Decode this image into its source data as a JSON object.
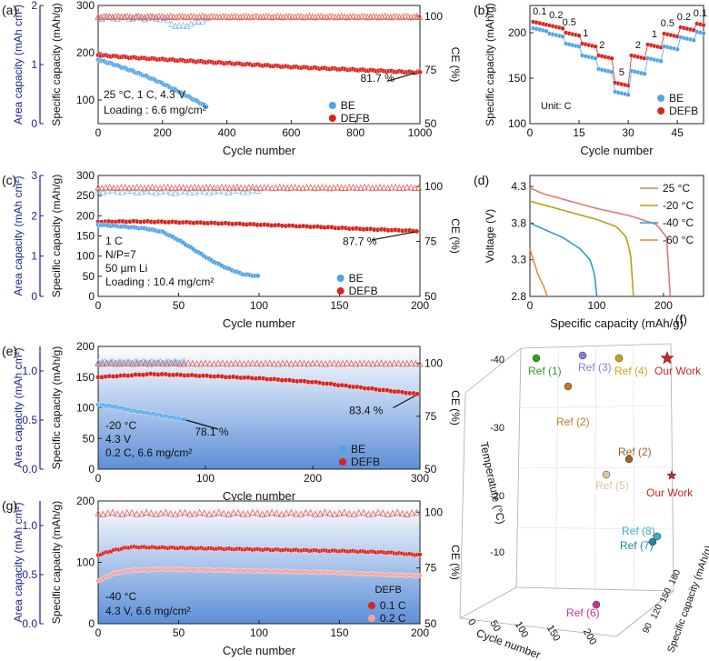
{
  "chart_data": [
    {
      "id": "a",
      "type": "scatter",
      "panel_label": "(a)",
      "xlabel": "Cycle number",
      "ylabel": "Specific capacity (mAh/g)",
      "y2label": "CE (%)",
      "y3label": "Area capacity (mAh cm²)",
      "xlim": [
        0,
        1000
      ],
      "ylim": [
        50,
        300
      ],
      "y2lim": [
        50,
        105
      ],
      "y3lim": [
        0,
        2
      ],
      "xticks": [
        0,
        200,
        400,
        600,
        800,
        1000
      ],
      "yticks": [
        100,
        200,
        300
      ],
      "y2ticks": [
        50,
        75,
        100
      ],
      "y3ticks": [
        0,
        1,
        2
      ],
      "annotations": [
        "25 °C, 1 C, 4.3 V",
        "Loading : 6.6 mg/cm²",
        "81.7 %"
      ],
      "legend": [
        "BE",
        "DEFB"
      ],
      "series": [
        {
          "name": "BE",
          "x": [
            0,
            50,
            100,
            150,
            200,
            250,
            300,
            340
          ],
          "values": [
            185,
            175,
            163,
            150,
            135,
            118,
            100,
            85
          ]
        },
        {
          "name": "DEFB",
          "x": [
            0,
            100,
            200,
            300,
            400,
            500,
            600,
            700,
            800,
            900,
            1000
          ],
          "values": [
            195,
            190,
            186,
            182,
            178,
            174,
            170,
            167,
            164,
            161,
            158
          ]
        },
        {
          "name": "BE CE",
          "x": [
            0,
            100,
            200,
            250,
            300,
            340
          ],
          "values": [
            99.5,
            99.3,
            99.2,
            95,
            97,
            99
          ]
        },
        {
          "name": "DEFB CE",
          "x": [
            0,
            500,
            1000
          ],
          "values": [
            99.8,
            99.8,
            99.8
          ]
        }
      ]
    },
    {
      "id": "b",
      "type": "scatter",
      "panel_label": "(b)",
      "xlabel": "Cycle number",
      "ylabel": "Specific capacity (mAh/g)",
      "xlim": [
        0,
        53
      ],
      "ylim": [
        100,
        230
      ],
      "xticks": [
        0,
        15,
        30,
        45
      ],
      "yticks": [
        100,
        150,
        200
      ],
      "annotations": [
        "Unit: C"
      ],
      "rate_labels": [
        "0.1",
        "0.2",
        "0.5",
        "1",
        "2",
        "5",
        "2",
        "1",
        "0.5",
        "0.2",
        "0.1"
      ],
      "legend": [
        "BE",
        "DEFB"
      ],
      "series": [
        {
          "name": "BE",
          "values": [
            205,
            199,
            188,
            175,
            160,
            135,
            158,
            172,
            185,
            195,
            201
          ]
        },
        {
          "name": "DEFB",
          "values": [
            212,
            208,
            200,
            188,
            175,
            145,
            175,
            187,
            199,
            206,
            210
          ]
        }
      ]
    },
    {
      "id": "c",
      "type": "scatter",
      "panel_label": "(c)",
      "xlabel": "Cycle number",
      "ylabel": "Specific capacity (mAh/g)",
      "y2label": "CE (%)",
      "y3label": "Area capacity (mAh cm²)",
      "xlim": [
        0,
        200
      ],
      "ylim": [
        0,
        300
      ],
      "y2lim": [
        50,
        105
      ],
      "y3lim": [
        0,
        3
      ],
      "xticks": [
        0,
        50,
        100,
        150,
        200
      ],
      "yticks": [
        0,
        50,
        100,
        150,
        200,
        250,
        300
      ],
      "y2ticks": [
        50,
        75,
        100
      ],
      "y3ticks": [
        0,
        1,
        2,
        3
      ],
      "annotations": [
        "1 C",
        "N/P=7",
        "50 µm Li",
        "Loading : 10.4 mg/cm²",
        "87.7 %"
      ],
      "legend": [
        "BE",
        "DEFB"
      ],
      "series": [
        {
          "name": "BE",
          "x": [
            0,
            10,
            20,
            30,
            40,
            50,
            60,
            70,
            80,
            90,
            100
          ],
          "values": [
            178,
            175,
            172,
            168,
            160,
            140,
            115,
            90,
            70,
            55,
            50
          ]
        },
        {
          "name": "DEFB",
          "x": [
            0,
            20,
            40,
            60,
            80,
            100,
            120,
            140,
            160,
            180,
            200
          ],
          "values": [
            185,
            186,
            185,
            183,
            181,
            178,
            175,
            172,
            168,
            165,
            162
          ]
        },
        {
          "name": "BE CE",
          "x": [
            0,
            50,
            100
          ],
          "values": [
            98,
            97.5,
            98
          ]
        },
        {
          "name": "DEFB CE",
          "x": [
            0,
            100,
            200
          ],
          "values": [
            99.5,
            99.5,
            99.5
          ]
        }
      ]
    },
    {
      "id": "d",
      "type": "line",
      "panel_label": "(d)",
      "xlabel": "Specific capacity (mAh/g)",
      "ylabel": "Voltage (V)",
      "xlim": [
        0,
        260
      ],
      "ylim": [
        2.8,
        4.45
      ],
      "xticks": [
        0,
        100,
        200
      ],
      "yticks": [
        2.8,
        3.3,
        3.8,
        4.3
      ],
      "legend": [
        "25 °C",
        "-20 °C",
        "-40 °C",
        "-60 °C"
      ],
      "series": [
        {
          "name": "25 °C",
          "color": "#e07b74",
          "x": [
            0,
            20,
            60,
            100,
            150,
            190,
            205,
            210
          ],
          "values": [
            4.28,
            4.2,
            4.1,
            4.0,
            3.9,
            3.78,
            3.6,
            2.8
          ]
        },
        {
          "name": "-20 °C",
          "color": "#b5a21a",
          "x": [
            0,
            20,
            60,
            100,
            130,
            145,
            152,
            155
          ],
          "values": [
            4.1,
            4.05,
            3.95,
            3.85,
            3.75,
            3.6,
            3.3,
            2.8
          ]
        },
        {
          "name": "-40 °C",
          "color": "#2a9fc4",
          "x": [
            0,
            20,
            50,
            75,
            90,
            97,
            100
          ],
          "values": [
            3.8,
            3.72,
            3.6,
            3.45,
            3.3,
            3.1,
            2.8
          ]
        },
        {
          "name": "-60 °C",
          "color": "#ec8a3c",
          "x": [
            0,
            5,
            12,
            20,
            26
          ],
          "values": [
            3.45,
            3.3,
            3.1,
            2.95,
            2.8
          ]
        }
      ]
    },
    {
      "id": "e",
      "type": "scatter",
      "panel_label": "(e)",
      "xlabel": "Cycle number",
      "ylabel": "Specific capacity (mAh/g)",
      "y2label": "CE (%)",
      "y3label": "Area capacity (mAh cm²)",
      "xlim": [
        0,
        300
      ],
      "ylim": [
        0,
        200
      ],
      "y2lim": [
        50,
        108
      ],
      "y3lim": [
        0,
        1.25
      ],
      "xticks": [
        0,
        100,
        200,
        300
      ],
      "yticks": [
        0,
        50,
        100,
        150,
        200
      ],
      "y2ticks": [
        50,
        75,
        100
      ],
      "y3ticks": [
        0.0,
        0.5,
        1.0
      ],
      "annotations": [
        "-20 °C",
        "4.3 V",
        "0.2 C, 6.6 mg/cm²",
        "78.1 %",
        "83.4 %"
      ],
      "legend": [
        "BE",
        "DEFB"
      ],
      "series": [
        {
          "name": "BE",
          "x": [
            0,
            10,
            20,
            30,
            40,
            50,
            60,
            70,
            80
          ],
          "values": [
            105,
            103,
            100,
            96,
            93,
            90,
            87,
            84,
            81
          ]
        },
        {
          "name": "DEFB",
          "x": [
            0,
            50,
            100,
            150,
            200,
            250,
            300
          ],
          "values": [
            150,
            155,
            152,
            148,
            142,
            132,
            122
          ]
        },
        {
          "name": "BE CE",
          "x": [
            0,
            40,
            80
          ],
          "values": [
            100.5,
            100.5,
            100.5
          ]
        },
        {
          "name": "DEFB CE",
          "x": [
            0,
            150,
            300
          ],
          "values": [
            100,
            100,
            100
          ]
        }
      ]
    },
    {
      "id": "f",
      "type": "scatter",
      "panel_label": "(f)",
      "xlabel": "Cycle number",
      "ylabel": "Temperature (°C)",
      "zlabel": "Specific capacity (mAh/g)",
      "xticks": [
        0,
        50,
        100,
        150,
        200
      ],
      "yticks": [
        -40,
        -30,
        -20,
        -10
      ],
      "zticks": [
        90,
        120,
        150,
        180
      ],
      "points": [
        {
          "label": "Ref (1)",
          "color": "#2ca02c"
        },
        {
          "label": "Ref (3)",
          "color": "#8a7fd0"
        },
        {
          "label": "Ref (4)",
          "color": "#c8a418"
        },
        {
          "label": "Our Work",
          "color": "#c62828"
        },
        {
          "label": "Ref (2)",
          "color": "#c07a20"
        },
        {
          "label": "Ref (2)",
          "color": "#a0622a"
        },
        {
          "label": "Ref (5)",
          "color": "#d8c898"
        },
        {
          "label": "Our Work",
          "color": "#c62828"
        },
        {
          "label": "Ref (8)",
          "color": "#3ab0c0"
        },
        {
          "label": "Ref (7)",
          "color": "#2a80a0"
        },
        {
          "label": "Ref (6)",
          "color": "#c0389a"
        }
      ]
    },
    {
      "id": "g",
      "type": "scatter",
      "panel_label": "(g)",
      "xlabel": "Cycle number",
      "ylabel": "Specific capacity (mAh/g)",
      "y2label": "CE (%)",
      "y3label": "Area capacity (mAh cm²)",
      "xlim": [
        0,
        200
      ],
      "ylim": [
        0,
        200
      ],
      "y2lim": [
        50,
        105
      ],
      "y3lim": [
        0,
        1.25
      ],
      "xticks": [
        0,
        50,
        100,
        150,
        200
      ],
      "yticks": [
        0,
        100,
        200
      ],
      "y2ticks": [
        50,
        75,
        100
      ],
      "y3ticks": [
        0.0,
        0.5,
        1.0
      ],
      "annotations": [
        "-40 °C",
        "4.3 V, 6.6 mg/cm²"
      ],
      "legend_title": "DEFB",
      "legend": [
        "0.1 C",
        "0.2 C"
      ],
      "series": [
        {
          "name": "0.1 C",
          "x": [
            0,
            10,
            20,
            40,
            60,
            80,
            100,
            120,
            140,
            160,
            180,
            200
          ],
          "values": [
            112,
            120,
            125,
            124,
            123,
            122,
            121,
            120,
            119,
            118,
            116,
            112
          ]
        },
        {
          "name": "0.2 C",
          "x": [
            0,
            10,
            20,
            40,
            60,
            80,
            100,
            120,
            140,
            160,
            180,
            200
          ],
          "values": [
            70,
            82,
            87,
            89,
            88,
            87,
            86,
            85,
            84,
            82,
            80,
            78
          ]
        },
        {
          "name": "CE",
          "x": [
            0,
            100,
            200
          ],
          "values": [
            99.5,
            99.5,
            99.5
          ]
        }
      ]
    }
  ]
}
